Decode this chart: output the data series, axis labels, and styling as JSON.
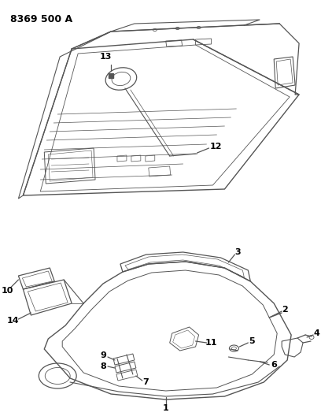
{
  "title": "8369 500 A",
  "background_color": "#ffffff",
  "line_color": "#555555",
  "text_color": "#000000",
  "figsize": [
    4.08,
    5.33
  ],
  "dpi": 100,
  "label_fontsize": 7.5
}
